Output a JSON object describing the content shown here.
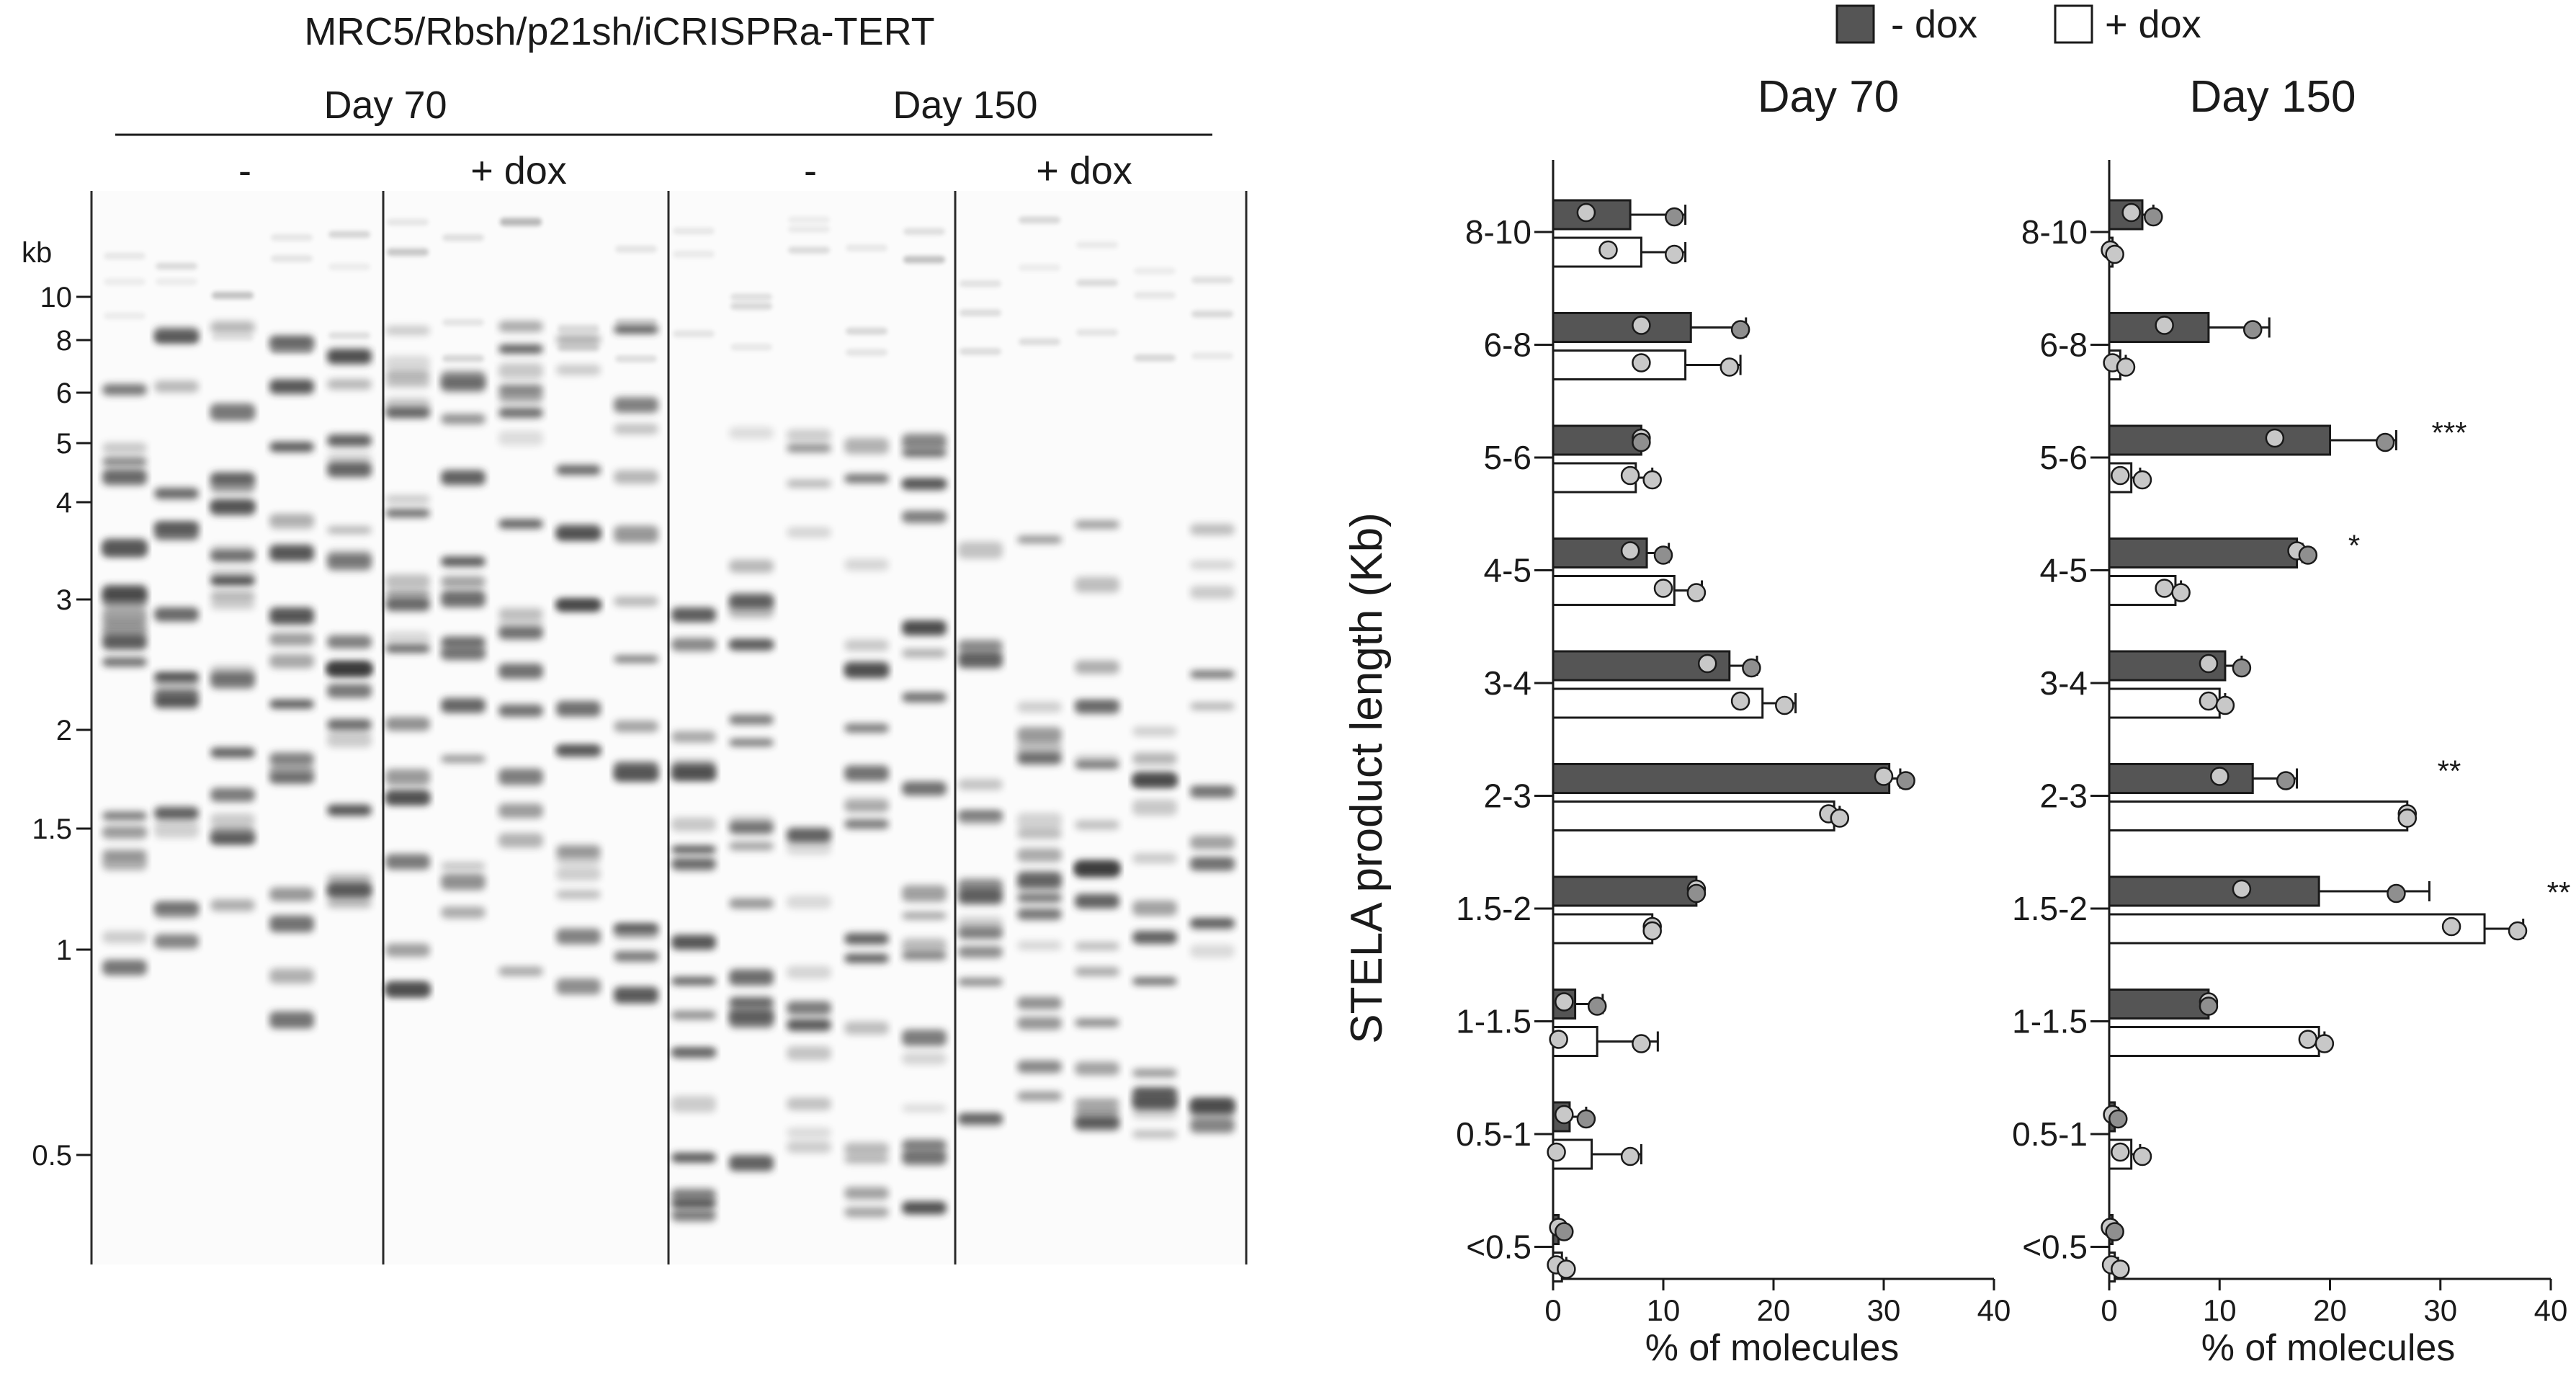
{
  "colors": {
    "minus_dox": "#555555",
    "plus_dox": "#ffffff",
    "dot_fill": "#c8c8c8",
    "stroke": "#1a1a1a"
  },
  "gel": {
    "title": "MRC5/Rbsh/p21sh/iCRISPRa-TERT",
    "groups": [
      {
        "label": "Day 70",
        "conditions": [
          "-",
          "+ dox"
        ]
      },
      {
        "label": "Day 150",
        "conditions": [
          "-",
          "+ dox"
        ]
      }
    ],
    "kb_label": "kb",
    "ladder": [
      "10",
      "8",
      "6",
      "5",
      "4",
      "3",
      "2",
      "1.5",
      "1",
      "0.5"
    ]
  },
  "legend": {
    "minus": "- dox",
    "plus": "+ dox"
  },
  "chart_data": [
    {
      "type": "bar",
      "title": "Day 70",
      "ylabel": "STELA product length (Kb)",
      "xlabel": "% of molecules",
      "xlim": [
        0,
        40
      ],
      "xticks": [
        "0",
        "10",
        "20",
        "30",
        "40"
      ],
      "categories": [
        "8-10",
        "6-8",
        "5-6",
        "4-5",
        "3-4",
        "2-3",
        "1.5-2",
        "1-1.5",
        "0.5-1",
        "<0.5"
      ],
      "series": [
        {
          "name": "- dox",
          "values": [
            7,
            12.5,
            8,
            8.5,
            16,
            30.5,
            13,
            2,
            1.5,
            0.5
          ],
          "errors": [
            5,
            5,
            0.2,
            2,
            2.5,
            1,
            0.2,
            2.5,
            1.5,
            0.3
          ],
          "points": [
            [
              3,
              11
            ],
            [
              8,
              17
            ],
            [
              8,
              8
            ],
            [
              7,
              10
            ],
            [
              14,
              18
            ],
            [
              30,
              32
            ],
            [
              13,
              13
            ],
            [
              1,
              4
            ],
            [
              1,
              3
            ],
            [
              0.5,
              1
            ]
          ]
        },
        {
          "name": "+ dox",
          "values": [
            8,
            12,
            7.5,
            11,
            19,
            25.5,
            9,
            4,
            3.5,
            0.8
          ],
          "errors": [
            4,
            5,
            1.5,
            2.5,
            3,
            0.5,
            0.2,
            5.5,
            4.5,
            0.4
          ],
          "points": [
            [
              5,
              11
            ],
            [
              8,
              16
            ],
            [
              7,
              9
            ],
            [
              10,
              13
            ],
            [
              17,
              21
            ],
            [
              25,
              26
            ],
            [
              9,
              9
            ],
            [
              0.5,
              8
            ],
            [
              0.3,
              7
            ],
            [
              0.3,
              1.2
            ]
          ]
        }
      ],
      "significance": [
        "",
        "",
        "",
        "",
        "",
        "",
        "",
        "",
        "",
        ""
      ]
    },
    {
      "type": "bar",
      "title": "Day 150",
      "ylabel": "",
      "xlabel": "% of molecules",
      "xlim": [
        0,
        40
      ],
      "xticks": [
        "0",
        "10",
        "20",
        "30",
        "40"
      ],
      "categories": [
        "8-10",
        "6-8",
        "5-6",
        "4-5",
        "3-4",
        "2-3",
        "1.5-2",
        "1-1.5",
        "0.5-1",
        "<0.5"
      ],
      "series": [
        {
          "name": "- dox",
          "values": [
            3,
            9,
            20,
            17,
            10.5,
            13,
            19,
            9,
            0.5,
            0.3
          ],
          "errors": [
            1,
            5.5,
            6,
            0.5,
            1.5,
            4,
            10,
            0.2,
            0.3,
            0.2
          ],
          "points": [
            [
              2,
              4
            ],
            [
              5,
              13
            ],
            [
              15,
              25
            ],
            [
              17,
              18
            ],
            [
              9,
              12
            ],
            [
              10,
              16
            ],
            [
              12,
              26
            ],
            [
              9,
              9
            ],
            [
              0.3,
              0.8
            ],
            [
              0.1,
              0.5
            ]
          ]
        },
        {
          "name": "+ dox",
          "values": [
            0.3,
            1,
            2,
            6,
            10,
            27,
            34,
            19,
            2,
            0.5
          ],
          "errors": [
            0.2,
            0.5,
            0.8,
            0.5,
            0.5,
            0.2,
            3.5,
            0.5,
            0.8,
            0.3
          ],
          "points": [
            [
              0.1,
              0.5
            ],
            [
              0.3,
              1.5
            ],
            [
              1,
              3
            ],
            [
              5,
              6.5
            ],
            [
              9,
              10.5
            ],
            [
              27,
              27
            ],
            [
              31,
              37
            ],
            [
              18,
              19.5
            ],
            [
              1,
              3
            ],
            [
              0.2,
              1
            ]
          ]
        }
      ],
      "significance": [
        "",
        "",
        "***",
        "*",
        "",
        "**",
        "**",
        "",
        "",
        ""
      ]
    }
  ]
}
